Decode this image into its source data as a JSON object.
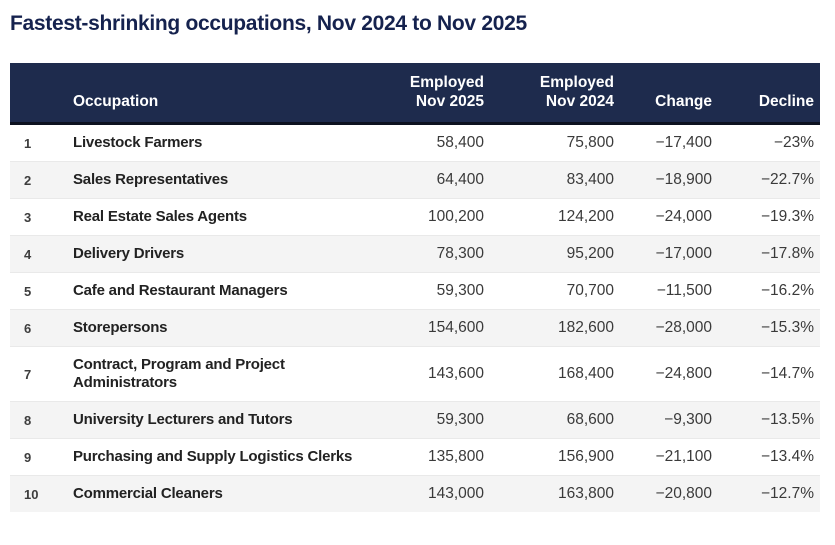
{
  "title": "Fastest-shrinking occupations, Nov 2024 to Nov 2025",
  "colors": {
    "title_text": "#15224e",
    "header_bg": "#1e2b4d",
    "header_text": "#ffffff",
    "header_bottom_border": "#0d1220",
    "row_alt_bg": "#f4f4f4",
    "body_text": "#3a3a3a",
    "occupation_text": "#222222"
  },
  "header": {
    "rank": "",
    "occupation": "Occupation",
    "employed_nov_2025": [
      "Employed",
      "Nov 2025"
    ],
    "employed_nov_2024": [
      "Employed",
      "Nov 2024"
    ],
    "change": "Change",
    "decline": "Decline"
  },
  "chart_data": {
    "type": "table",
    "title": "Fastest-shrinking occupations, Nov 2024 to Nov 2025",
    "columns": [
      "",
      "Occupation",
      "Employed Nov 2025",
      "Employed Nov 2024",
      "Change",
      "Decline"
    ],
    "rows": [
      {
        "rank": "1",
        "occupation": "Livestock Farmers",
        "employed_nov_2025": "58,400",
        "employed_nov_2024": "75,800",
        "change": "−17,400",
        "decline": "−23%"
      },
      {
        "rank": "2",
        "occupation": "Sales Representatives",
        "employed_nov_2025": "64,400",
        "employed_nov_2024": "83,400",
        "change": "−18,900",
        "decline": "−22.7%"
      },
      {
        "rank": "3",
        "occupation": "Real Estate Sales Agents",
        "employed_nov_2025": "100,200",
        "employed_nov_2024": "124,200",
        "change": "−24,000",
        "decline": "−19.3%"
      },
      {
        "rank": "4",
        "occupation": "Delivery Drivers",
        "employed_nov_2025": "78,300",
        "employed_nov_2024": "95,200",
        "change": "−17,000",
        "decline": "−17.8%"
      },
      {
        "rank": "5",
        "occupation": "Cafe and Restaurant Managers",
        "employed_nov_2025": "59,300",
        "employed_nov_2024": "70,700",
        "change": "−11,500",
        "decline": "−16.2%"
      },
      {
        "rank": "6",
        "occupation": "Storepersons",
        "employed_nov_2025": "154,600",
        "employed_nov_2024": "182,600",
        "change": "−28,000",
        "decline": "−15.3%"
      },
      {
        "rank": "7",
        "occupation": "Contract, Program and Project Administrators",
        "employed_nov_2025": "143,600",
        "employed_nov_2024": "168,400",
        "change": "−24,800",
        "decline": "−14.7%"
      },
      {
        "rank": "8",
        "occupation": "University Lecturers and Tutors",
        "employed_nov_2025": "59,300",
        "employed_nov_2024": "68,600",
        "change": "−9,300",
        "decline": "−13.5%"
      },
      {
        "rank": "9",
        "occupation": "Purchasing and Supply Logistics Clerks",
        "employed_nov_2025": "135,800",
        "employed_nov_2024": "156,900",
        "change": "−21,100",
        "decline": "−13.4%"
      },
      {
        "rank": "10",
        "occupation": "Commercial Cleaners",
        "employed_nov_2025": "143,000",
        "employed_nov_2024": "163,800",
        "change": "−20,800",
        "decline": "−12.7%"
      }
    ]
  }
}
